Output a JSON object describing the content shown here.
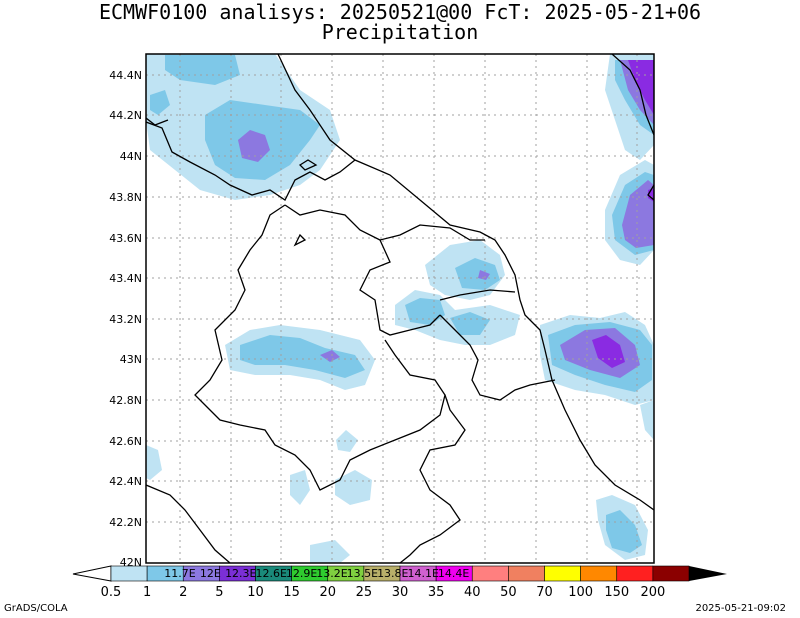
{
  "header": {
    "title": "ECMWF0100 analisys: 20250521@00 FcT: 2025-05-21+06",
    "subtitle": "Precipitation"
  },
  "map": {
    "lat_labels": [
      "44.4N",
      "44.2N",
      "44N",
      "43.8N",
      "43.6N",
      "43.4N",
      "43.2N",
      "43N",
      "42.8N",
      "42.6N",
      "42.4N",
      "42.2N",
      "42N"
    ],
    "colors": {
      "light_blue": "#bfe3f3",
      "sky_blue": "#7ec8e8",
      "lavender": "#8c78e0",
      "purple": "#8a2be2",
      "boundary": "#000000",
      "grid": "#a0a0a0"
    }
  },
  "colorbar": {
    "tick_labels": [
      "0.5",
      "1",
      "2",
      "5",
      "10",
      "15",
      "20",
      "25",
      "30",
      "35",
      "40",
      "50",
      "70",
      "100",
      "150",
      "200"
    ],
    "inner_labels": [
      "11.7E",
      "12E",
      "12.3E",
      "12.6E",
      "12.9E",
      "13.2E",
      "13.5E",
      "13.8E",
      "14.1E",
      "14.4E"
    ],
    "colors": [
      "#bfe3f3",
      "#7ec8e8",
      "#8c78e0",
      "#7b2fd6",
      "#1a8a7a",
      "#2fcc2f",
      "#80d040",
      "#b9b06a",
      "#d060d0",
      "#f000f0",
      "#ff7f7f",
      "#f08060",
      "#ffff00",
      "#ff8800",
      "#ff2020",
      "#8b0000"
    ]
  },
  "footer": {
    "left": "GrADS/COLA",
    "right": "2025-05-21-09:02"
  }
}
